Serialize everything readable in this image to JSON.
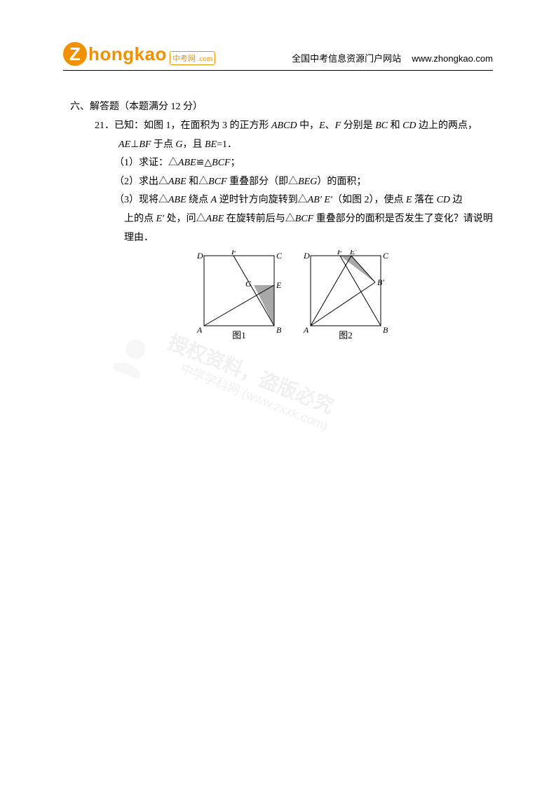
{
  "header": {
    "logo_letter": "Z",
    "logo_text": "hongkao",
    "logo_suffix": "中考网\n.com",
    "tagline": "全国中考信息资源门户网站",
    "url": "www.zhongkao.com"
  },
  "section": {
    "number": "六、",
    "title": "解答题（本题满分 12 分）"
  },
  "problem": {
    "number": "21．",
    "intro_1": "已知：如图 1，在面积为 3 的正方形 ",
    "abcd": "ABCD",
    "intro_2": " 中，",
    "e": "E",
    "comma1": "、",
    "f": "F",
    "intro_3": " 分别是 ",
    "bc": "BC",
    "intro_4": " 和 ",
    "cd": "CD",
    "intro_5": " 边上的两点，",
    "line2_1": "AE",
    "perp": "⊥",
    "line2_2": "BF",
    "line2_3": " 于点 ",
    "g": "G",
    "line2_4": "，且 ",
    "be": "BE",
    "line2_5": "=1．",
    "part1_num": "（1）",
    "part1_text_1": "求证：△",
    "part1_abe": "ABE",
    "part1_cong": "≌",
    "part1_tri2": "△",
    "part1_bcf": "BCF",
    "part1_end": "；",
    "part2_num": "（2）",
    "part2_text_1": "求出△",
    "part2_abe": "ABE",
    "part2_text_2": " 和△",
    "part2_bcf": "BCF",
    "part2_text_3": " 重叠部分（即△",
    "part2_beg": "BEG",
    "part2_text_4": "）的面积；",
    "part3_num": "（3）",
    "part3_text_1": "现将△",
    "part3_abe": "ABE",
    "part3_text_2": " 绕点 ",
    "part3_a": "A",
    "part3_text_3": " 逆时针方向旋转到△",
    "part3_ab2": "AB′ E′",
    "part3_text_4": "（如图 2），使点 ",
    "part3_e": "E",
    "part3_text_5": " 落在 ",
    "part3_cd": "CD",
    "part3_text_6": " 边",
    "part3_line2_1": "上的点 ",
    "part3_e2": "E′",
    "part3_line2_2": " 处，问△",
    "part3_abe2": "ABE",
    "part3_line2_3": " 在旋转前后与△",
    "part3_bcf2": "BCF",
    "part3_line2_4": " 重叠部分的面积是否发生了变化？请说明理由．"
  },
  "figures": {
    "fig1": {
      "caption": "图1",
      "size": 100,
      "square_color": "#000000",
      "line_color": "#000000",
      "fill_color": "#a8a8a8",
      "label_A": "A",
      "label_B": "B",
      "label_C": "C",
      "label_D": "D",
      "label_E": "E",
      "label_F": "F",
      "label_G": "G",
      "E_pos": 0.58,
      "F_pos": 0.42,
      "G_x": 0.71,
      "G_y": 0.58
    },
    "fig2": {
      "caption": "图2",
      "size": 100,
      "square_color": "#000000",
      "line_color": "#000000",
      "fill_color": "#a8a8a8",
      "label_A": "A",
      "label_B": "B",
      "label_C": "C",
      "label_D": "D",
      "label_F": "F",
      "label_E2": "E′",
      "label_B2": "B′",
      "F_pos": 0.42,
      "E2_pos": 0.58,
      "B2_x": 0.92,
      "B2_y": 0.38
    }
  },
  "watermark": {
    "line1": "授权资料，盗版必究",
    "line2": "中学学科网 (www.zxxk.com)"
  }
}
